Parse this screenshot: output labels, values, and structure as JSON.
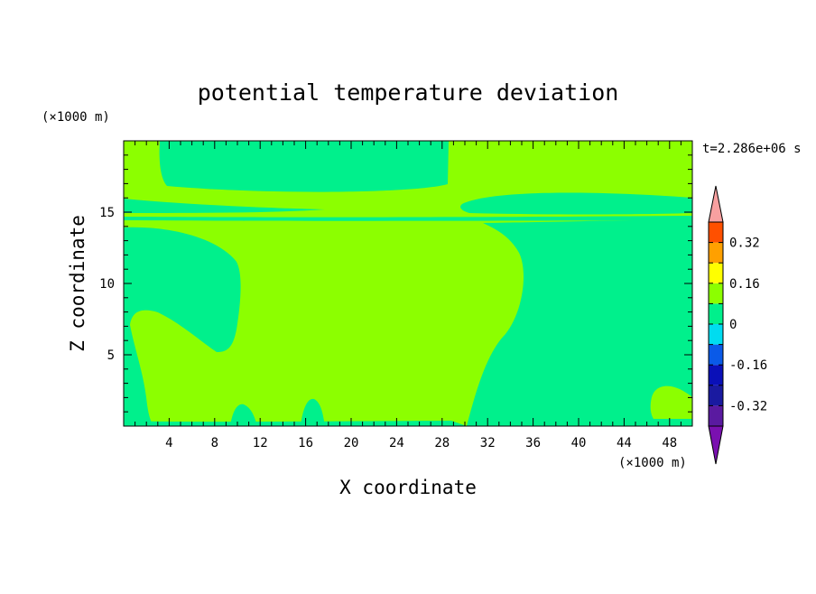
{
  "chart_data": {
    "type": "heatmap",
    "title": "potential temperature deviation",
    "xlabel": "X coordinate",
    "ylabel": "Z coordinate",
    "x_unit": "(×1000 m)",
    "y_unit": "(×1000 m)",
    "time_label": "t=2.286e+06 s",
    "xlim": [
      0,
      50
    ],
    "ylim": [
      0,
      20
    ],
    "x_ticks": [
      4,
      8,
      12,
      16,
      20,
      24,
      28,
      32,
      36,
      40,
      44,
      48
    ],
    "y_ticks": [
      5,
      10,
      15
    ],
    "colorbar": {
      "levels": [
        -0.4,
        -0.32,
        -0.24,
        -0.16,
        -0.08,
        0,
        0.08,
        0.16,
        0.24,
        0.32,
        0.4
      ],
      "colors": [
        "#5a1aa0",
        "#1a1aa0",
        "#0a10b8",
        "#0a5ae8",
        "#00dcf0",
        "#00f08c",
        "#8cff00",
        "#ffff00",
        "#ffa000",
        "#ff5000",
        "#ff2020"
      ],
      "under_color": "#7a10b0",
      "over_color": "#f8a0a0",
      "labels": [
        "0.32",
        "0.16",
        "0",
        "-0.16",
        "-0.32"
      ],
      "label_values": [
        0.32,
        0.16,
        0,
        -0.16,
        -0.32
      ]
    },
    "regions": [
      {
        "name": "positive (0 to 0.08)",
        "color": "#8cff00"
      },
      {
        "name": "negative (-0.08 to 0)",
        "color": "#00f08c"
      }
    ]
  }
}
